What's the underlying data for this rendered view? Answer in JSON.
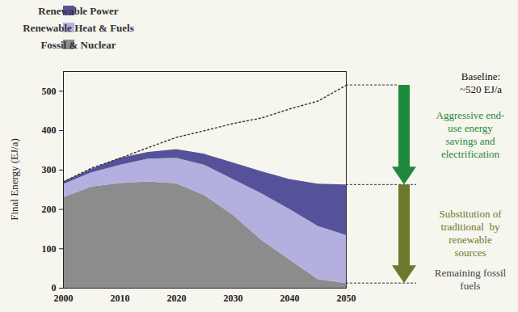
{
  "chart_data": {
    "type": "area",
    "stacked": true,
    "y_label": "Final Energy (EJ/a)",
    "x": [
      2000,
      2005,
      2010,
      2015,
      2020,
      2025,
      2030,
      2035,
      2040,
      2045,
      2050
    ],
    "xlim": [
      2000,
      2050
    ],
    "xticks": [
      2000,
      2010,
      2020,
      2030,
      2040,
      2050
    ],
    "ylim": [
      0,
      550
    ],
    "yticks": [
      0,
      100,
      200,
      300,
      400,
      500
    ],
    "grid": false,
    "legend": "top-left",
    "series": [
      {
        "name": "Renewable Power",
        "color": "#55529a",
        "values": [
          7,
          9,
          18,
          17,
          22,
          28,
          42,
          56,
          76,
          107,
          128
        ]
      },
      {
        "name": "Renewable Heat & Fuels",
        "color": "#b3b0e0",
        "values": [
          33,
          36,
          46,
          58,
          65,
          77,
          91,
          118,
          128,
          135,
          122
        ]
      },
      {
        "name": "Fossil & Nuclear",
        "color": "#8c8c8c",
        "values": [
          230,
          257,
          266,
          270,
          265,
          235,
          185,
          122,
          72,
          22,
          12
        ]
      }
    ],
    "baseline": {
      "label": [
        "Baseline:",
        "~520 EJ/a"
      ],
      "color": "#333333",
      "line_style": "dotted",
      "values": [
        270,
        305,
        330,
        357,
        383,
        400,
        418,
        432,
        455,
        475,
        515
      ]
    },
    "annotations": [
      {
        "text": [
          "Aggressive end-",
          "use energy",
          "savings and",
          "electrification"
        ],
        "color": "#1f8a3b"
      },
      {
        "text": [
          "Substitution of",
          "traditional  by",
          "renewable",
          "sources"
        ],
        "color": "#6b7a2a"
      },
      {
        "text": [
          "Remaining fossil",
          "fuels"
        ],
        "color": "#444444"
      }
    ]
  }
}
